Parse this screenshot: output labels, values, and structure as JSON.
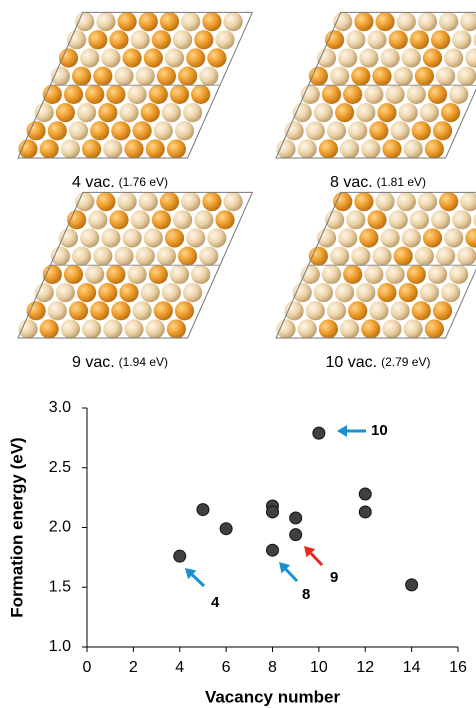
{
  "panels": [
    {
      "label": "4 vac.",
      "energy": "(1.76 eV)"
    },
    {
      "label": "8 vac.",
      "energy": "(1.81 eV)"
    },
    {
      "label": "9 vac.",
      "energy": "(1.94 eV)"
    },
    {
      "label": "10 vac.",
      "energy": "(2.79 eV)"
    }
  ],
  "chart_data": {
    "type": "scatter",
    "x_label": "Vacancy number",
    "y_label": "Formation energy (eV)",
    "x": [
      4,
      5,
      6,
      8,
      8,
      8,
      9,
      9,
      10,
      12,
      12,
      14
    ],
    "values": [
      1.76,
      2.15,
      1.99,
      2.18,
      2.13,
      1.81,
      2.08,
      1.94,
      2.79,
      2.28,
      2.13,
      1.52
    ],
    "color": "#404040",
    "xlim": [
      0,
      16
    ],
    "xticks": [
      0,
      2,
      4,
      6,
      8,
      10,
      12,
      14,
      16
    ],
    "ylim": [
      1,
      3
    ],
    "yticks": [
      {
        "value": 1,
        "label": "1.0"
      },
      {
        "value": 1.5,
        "label": "1.5"
      },
      {
        "value": 2,
        "label": "2.0"
      },
      {
        "value": 2.5,
        "label": "2.5"
      },
      {
        "value": 3,
        "label": "3.0"
      }
    ],
    "annotations": [
      {
        "text": "10",
        "color": "#1a8fd1"
      },
      {
        "text": "4",
        "color": "#1a8fd1"
      },
      {
        "text": "8",
        "color": "#1a8fd1"
      },
      {
        "text": "9",
        "color": "#e8291c"
      }
    ]
  }
}
